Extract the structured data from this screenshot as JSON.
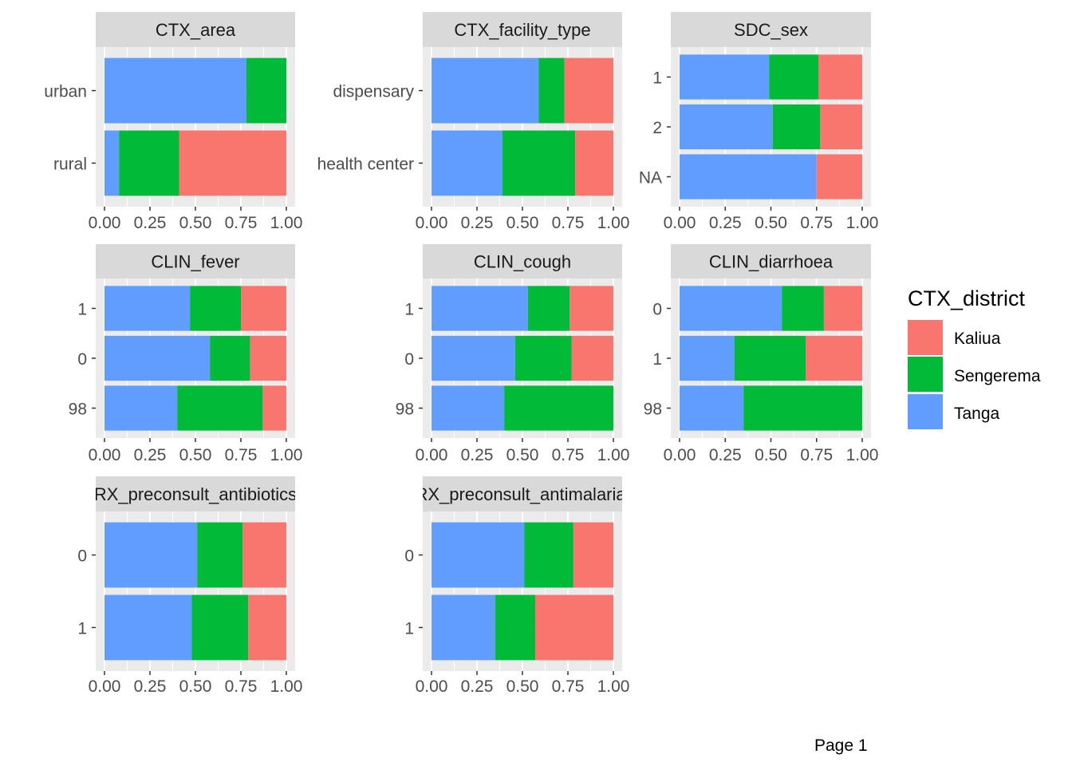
{
  "page_label": "Page 1",
  "colors": {
    "Kaliua": "#F8766D",
    "Sengerema": "#00BA38",
    "Tanga": "#619CFF"
  },
  "legend": {
    "title": "CTX_district",
    "entries": [
      "Kaliua",
      "Sengerema",
      "Tanga"
    ]
  },
  "chart_data": [
    {
      "type": "bar",
      "title": "CTX_area",
      "stacked": "fill",
      "orientation": "horizontal",
      "xlim": [
        0,
        1
      ],
      "ticks": [
        "0.00",
        "0.25",
        "0.50",
        "0.75",
        "1.00"
      ],
      "categories": [
        "urban",
        "rural"
      ],
      "series": [
        {
          "name": "Tanga",
          "values": [
            0.78,
            0.08
          ]
        },
        {
          "name": "Sengerema",
          "values": [
            0.22,
            0.33
          ]
        },
        {
          "name": "Kaliua",
          "values": [
            0.0,
            0.59
          ]
        }
      ]
    },
    {
      "type": "bar",
      "title": "CTX_facility_type",
      "stacked": "fill",
      "orientation": "horizontal",
      "xlim": [
        0,
        1
      ],
      "ticks": [
        "0.00",
        "0.25",
        "0.50",
        "0.75",
        "1.00"
      ],
      "categories": [
        "dispensary",
        "health center"
      ],
      "series": [
        {
          "name": "Tanga",
          "values": [
            0.59,
            0.39
          ]
        },
        {
          "name": "Sengerema",
          "values": [
            0.14,
            0.4
          ]
        },
        {
          "name": "Kaliua",
          "values": [
            0.27,
            0.21
          ]
        }
      ]
    },
    {
      "type": "bar",
      "title": "SDC_sex",
      "stacked": "fill",
      "orientation": "horizontal",
      "xlim": [
        0,
        1
      ],
      "ticks": [
        "0.00",
        "0.25",
        "0.50",
        "0.75",
        "1.00"
      ],
      "categories": [
        "1",
        "2",
        "NA"
      ],
      "series": [
        {
          "name": "Tanga",
          "values": [
            0.49,
            0.51,
            0.75
          ]
        },
        {
          "name": "Sengerema",
          "values": [
            0.27,
            0.26,
            0.0
          ]
        },
        {
          "name": "Kaliua",
          "values": [
            0.24,
            0.23,
            0.25
          ]
        }
      ]
    },
    {
      "type": "bar",
      "title": "CLIN_fever",
      "stacked": "fill",
      "orientation": "horizontal",
      "xlim": [
        0,
        1
      ],
      "ticks": [
        "0.00",
        "0.25",
        "0.50",
        "0.75",
        "1.00"
      ],
      "categories": [
        "1",
        "0",
        "98"
      ],
      "series": [
        {
          "name": "Tanga",
          "values": [
            0.47,
            0.58,
            0.4
          ]
        },
        {
          "name": "Sengerema",
          "values": [
            0.28,
            0.22,
            0.47
          ]
        },
        {
          "name": "Kaliua",
          "values": [
            0.25,
            0.2,
            0.13
          ]
        }
      ]
    },
    {
      "type": "bar",
      "title": "CLIN_cough",
      "stacked": "fill",
      "orientation": "horizontal",
      "xlim": [
        0,
        1
      ],
      "ticks": [
        "0.00",
        "0.25",
        "0.50",
        "0.75",
        "1.00"
      ],
      "categories": [
        "1",
        "0",
        "98"
      ],
      "series": [
        {
          "name": "Tanga",
          "values": [
            0.53,
            0.46,
            0.4
          ]
        },
        {
          "name": "Sengerema",
          "values": [
            0.23,
            0.31,
            0.6
          ]
        },
        {
          "name": "Kaliua",
          "values": [
            0.24,
            0.23,
            0.0
          ]
        }
      ]
    },
    {
      "type": "bar",
      "title": "CLIN_diarrhoea",
      "stacked": "fill",
      "orientation": "horizontal",
      "xlim": [
        0,
        1
      ],
      "ticks": [
        "0.00",
        "0.25",
        "0.50",
        "0.75",
        "1.00"
      ],
      "categories": [
        "0",
        "1",
        "98"
      ],
      "series": [
        {
          "name": "Tanga",
          "values": [
            0.56,
            0.3,
            0.35
          ]
        },
        {
          "name": "Sengerema",
          "values": [
            0.23,
            0.39,
            0.65
          ]
        },
        {
          "name": "Kaliua",
          "values": [
            0.21,
            0.31,
            0.0
          ]
        }
      ]
    },
    {
      "type": "bar",
      "title": "RX_preconsult_antibiotics",
      "stacked": "fill",
      "orientation": "horizontal",
      "xlim": [
        0,
        1
      ],
      "ticks": [
        "0.00",
        "0.25",
        "0.50",
        "0.75",
        "1.00"
      ],
      "categories": [
        "0",
        "1"
      ],
      "series": [
        {
          "name": "Tanga",
          "values": [
            0.51,
            0.48
          ]
        },
        {
          "name": "Sengerema",
          "values": [
            0.25,
            0.31
          ]
        },
        {
          "name": "Kaliua",
          "values": [
            0.24,
            0.21
          ]
        }
      ]
    },
    {
      "type": "bar",
      "title": "RX_preconsult_antimalarial",
      "stacked": "fill",
      "orientation": "horizontal",
      "xlim": [
        0,
        1
      ],
      "ticks": [
        "0.00",
        "0.25",
        "0.50",
        "0.75",
        "1.00"
      ],
      "categories": [
        "0",
        "1"
      ],
      "series": [
        {
          "name": "Tanga",
          "values": [
            0.51,
            0.35
          ]
        },
        {
          "name": "Sengerema",
          "values": [
            0.27,
            0.22
          ]
        },
        {
          "name": "Kaliua",
          "values": [
            0.22,
            0.43
          ]
        }
      ]
    }
  ]
}
